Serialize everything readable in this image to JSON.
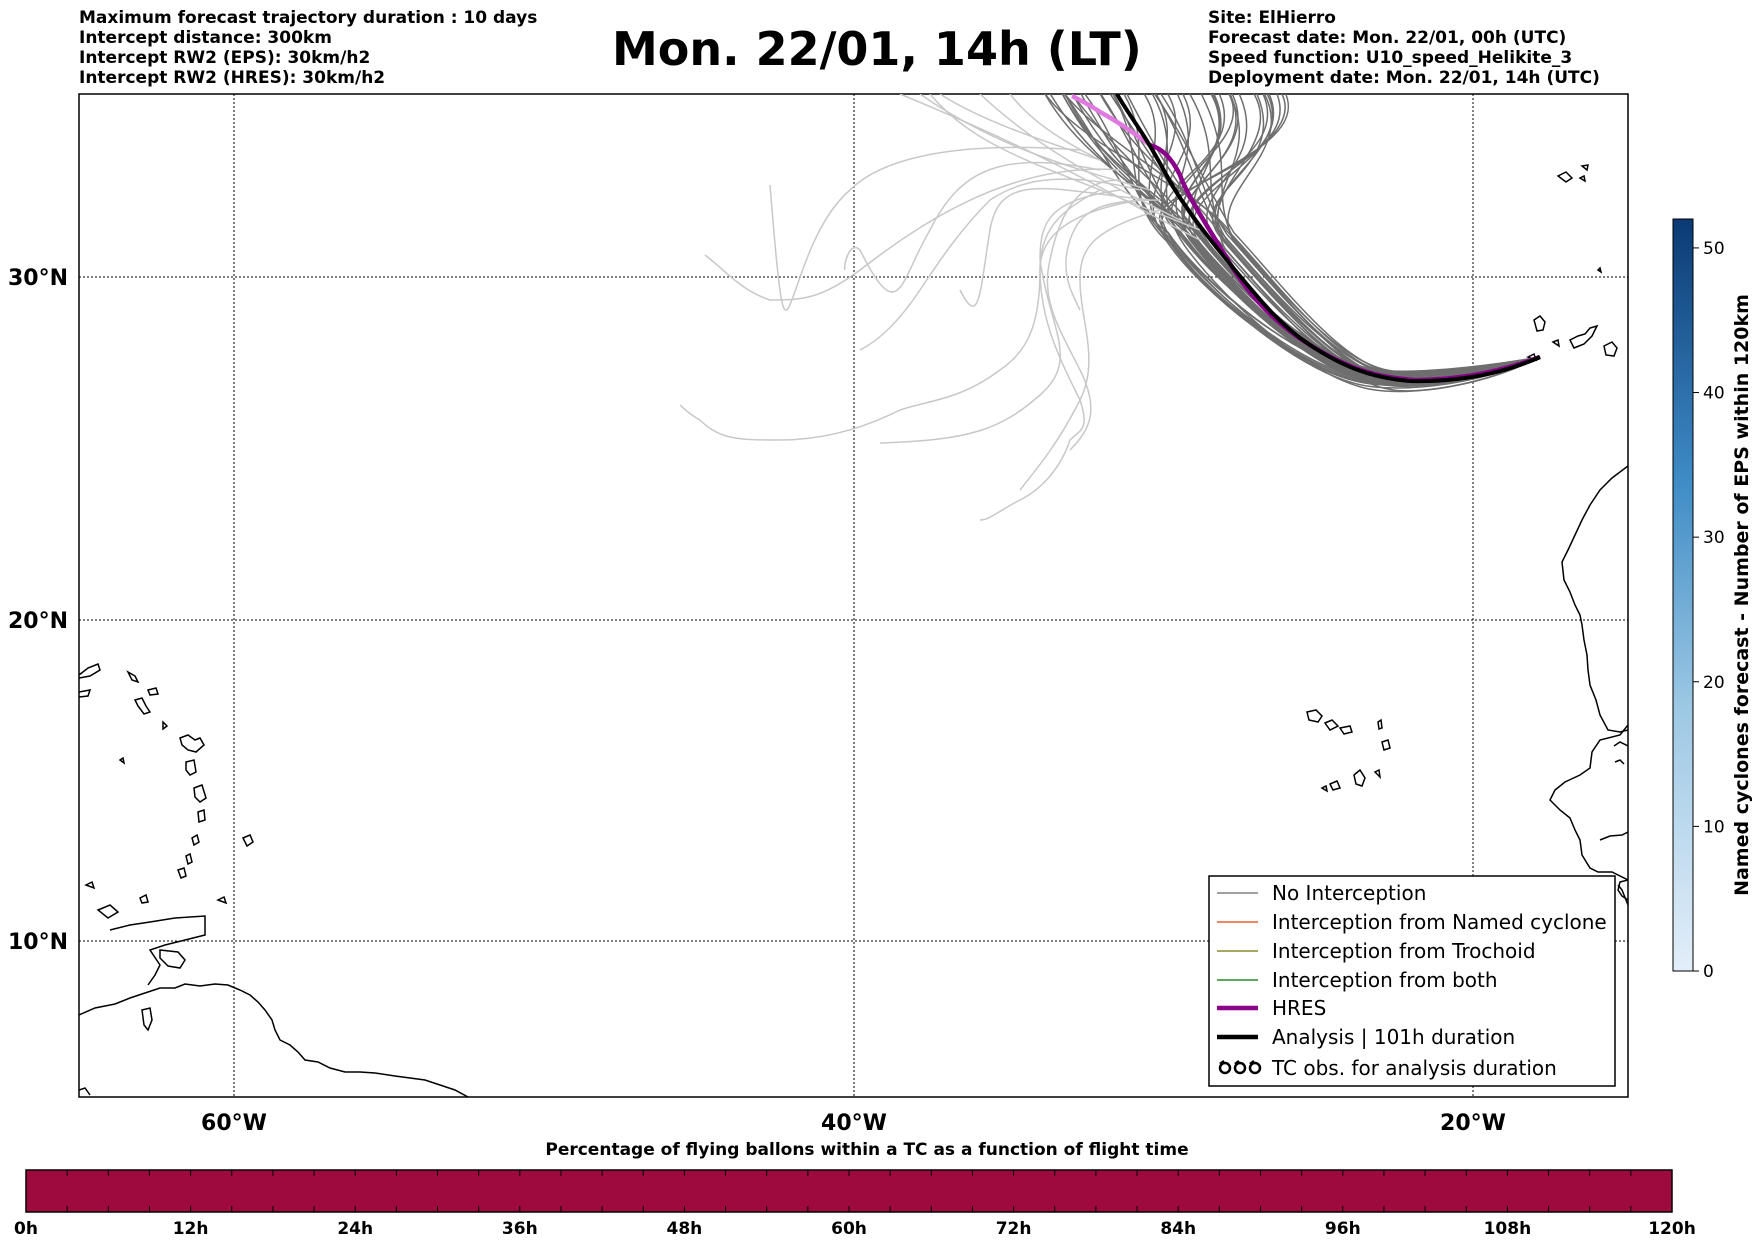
{
  "header": {
    "title": "Mon. 22/01, 14h (LT)",
    "left_lines": [
      "Maximum forecast trajectory duration : 10 days",
      "Intercept distance: 300km",
      "Intercept RW2 (EPS):  30km/h2",
      "Intercept RW2 (HRES): 30km/h2"
    ],
    "right_lines": [
      "Site: ElHierro",
      "Forecast date: Mon. 22/01, 00h (UTC)",
      "Speed function: U10_speed_Helikite_3",
      "Deployment date: Mon. 22/01, 14h (UTC)"
    ]
  },
  "map": {
    "lat_labels": [
      "30°N",
      "20°N",
      "10°N"
    ],
    "lon_labels": [
      "60°W",
      "40°W",
      "20°W"
    ],
    "extent": {
      "lon_min": -65,
      "lon_max": -15,
      "lat_min": 4.7,
      "lat_max": 34.0
    },
    "gridlines": {
      "lats": [
        30,
        20,
        10
      ],
      "lons": [
        -60,
        -40,
        -20
      ]
    }
  },
  "legend": {
    "items": [
      {
        "label": "No Interception",
        "color": "#808080",
        "style": "thin"
      },
      {
        "label": "Interception from Named cyclone",
        "color": "#e8602c",
        "style": "thin"
      },
      {
        "label": "Interception from Trochoid",
        "color": "#8a8a2a",
        "style": "thin"
      },
      {
        "label": "Interception from both",
        "color": "#2a8a2a",
        "style": "thin"
      },
      {
        "label": "HRES",
        "color": "#8b008b",
        "style": "thick"
      },
      {
        "label": "Analysis | 101h duration",
        "color": "#000000",
        "style": "thick"
      },
      {
        "label": "TC obs. for analysis duration",
        "color": "#000000",
        "style": "symbol"
      }
    ]
  },
  "colorbar": {
    "label": "Named cyclones forecast - Number of EPS within 120km",
    "ticks": [
      "0",
      "10",
      "20",
      "30",
      "40",
      "50"
    ],
    "min": 0,
    "max": 52,
    "color_low": "#e3eef9",
    "color_high": "#0b3a75"
  },
  "percentbar": {
    "title": "Percentage of flying ballons within a TC as a function of flight time",
    "ticks": [
      "0h",
      "12h",
      "24h",
      "36h",
      "48h",
      "60h",
      "72h",
      "84h",
      "96h",
      "108h",
      "120h"
    ],
    "fill_color": "#9e0a3e"
  },
  "colors": {
    "eps_light": "#c8c8c8",
    "eps_dark": "#6e6e6e",
    "hres": "#8b008b",
    "hres_head": "#e07ae0",
    "analysis": "#000000"
  }
}
